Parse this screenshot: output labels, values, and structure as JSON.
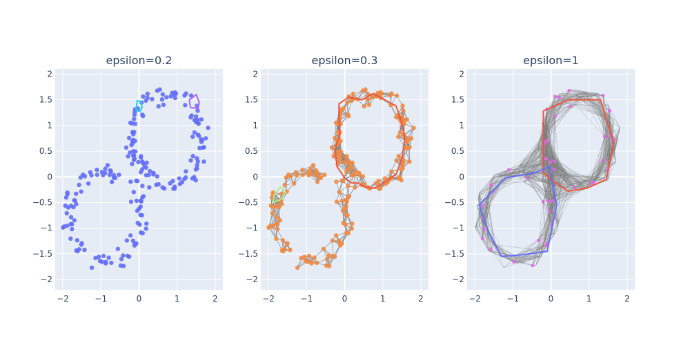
{
  "chart_data": [
    {
      "type": "scatter",
      "title": "epsilon=0.2",
      "xlim": [
        -2.2,
        2.2
      ],
      "ylim": [
        -2.2,
        2.1
      ],
      "xticks": [
        -2,
        -1,
        0,
        1,
        2
      ],
      "yticks": [
        2,
        1.5,
        1,
        0.5,
        0,
        -0.5,
        -1,
        -1.5,
        -2
      ],
      "grid": true,
      "point_color": "#636efa",
      "loops": [
        {
          "color": "#19d3f3",
          "points": [
            [
              -0.05,
              1.48
            ],
            [
              0.05,
              1.47
            ],
            [
              0.08,
              1.35
            ],
            [
              0.02,
              1.27
            ],
            [
              -0.08,
              1.3
            ]
          ]
        },
        {
          "color": "#ab63fa",
          "points": [
            [
              1.32,
              1.5
            ],
            [
              1.5,
              1.6
            ],
            [
              1.58,
              1.45
            ],
            [
              1.55,
              1.33
            ],
            [
              1.35,
              1.35
            ]
          ]
        }
      ]
    },
    {
      "type": "scatter",
      "title": "epsilon=0.3",
      "xlim": [
        -2.2,
        2.2
      ],
      "ylim": [
        -2.2,
        2.1
      ],
      "xticks": [
        -2,
        -1,
        0,
        1,
        2
      ],
      "yticks": [
        2,
        1.5,
        1,
        0.5,
        0,
        -0.5,
        -1,
        -1.5,
        -2
      ],
      "grid": true,
      "point_color": "#ef8b44",
      "edge_color": "#808080",
      "loops": [
        {
          "color": "#ef553b",
          "points": [
            [
              -0.15,
              1.42
            ],
            [
              0.1,
              1.55
            ],
            [
              0.45,
              1.5
            ],
            [
              0.75,
              1.62
            ],
            [
              1.05,
              1.5
            ],
            [
              1.35,
              1.38
            ],
            [
              1.48,
              1.1
            ],
            [
              1.58,
              0.75
            ],
            [
              1.5,
              0.35
            ],
            [
              1.35,
              0.05
            ],
            [
              1.05,
              -0.1
            ],
            [
              0.78,
              -0.22
            ],
            [
              0.52,
              -0.2
            ],
            [
              0.35,
              -0.12
            ],
            [
              0.18,
              -0.12
            ],
            [
              0.0,
              -0.02
            ],
            [
              -0.2,
              0.2
            ],
            [
              -0.25,
              0.55
            ],
            [
              -0.12,
              0.85
            ],
            [
              -0.15,
              1.15
            ]
          ]
        },
        {
          "color": "#b6e880",
          "points": [
            [
              -1.88,
              -0.5
            ],
            [
              -1.7,
              -0.45
            ],
            [
              -1.55,
              -0.3
            ],
            [
              -1.68,
              -0.2
            ],
            [
              -1.85,
              -0.35
            ]
          ]
        }
      ]
    },
    {
      "type": "scatter",
      "title": "epsilon=1",
      "xlim": [
        -2.2,
        2.2
      ],
      "ylim": [
        -2.2,
        2.1
      ],
      "xticks": [
        -2,
        -1,
        0,
        1,
        2
      ],
      "yticks": [
        2,
        1.5,
        1,
        0.5,
        0,
        -0.5,
        -1,
        -1.5,
        -2
      ],
      "grid": true,
      "point_color": "#e068e8",
      "edge_color": "#808080",
      "loops": [
        {
          "color": "#ef553b",
          "points": [
            [
              -0.2,
              1.28
            ],
            [
              0.45,
              1.5
            ],
            [
              1.3,
              1.5
            ],
            [
              1.65,
              0.65
            ],
            [
              1.45,
              -0.05
            ],
            [
              0.95,
              -0.22
            ],
            [
              0.45,
              -0.28
            ],
            [
              0.0,
              -0.05
            ],
            [
              -0.2,
              0.08
            ],
            [
              -0.2,
              0.72
            ]
          ]
        },
        {
          "color": "#636efa",
          "points": [
            [
              -0.4,
              0.08
            ],
            [
              -1.2,
              -0.02
            ],
            [
              -1.88,
              -0.55
            ],
            [
              -1.65,
              -1.05
            ],
            [
              -1.3,
              -1.55
            ],
            [
              -0.75,
              -1.52
            ],
            [
              -0.1,
              -1.45
            ],
            [
              0.15,
              -0.55
            ],
            [
              -0.05,
              0.2
            ]
          ]
        }
      ]
    }
  ]
}
